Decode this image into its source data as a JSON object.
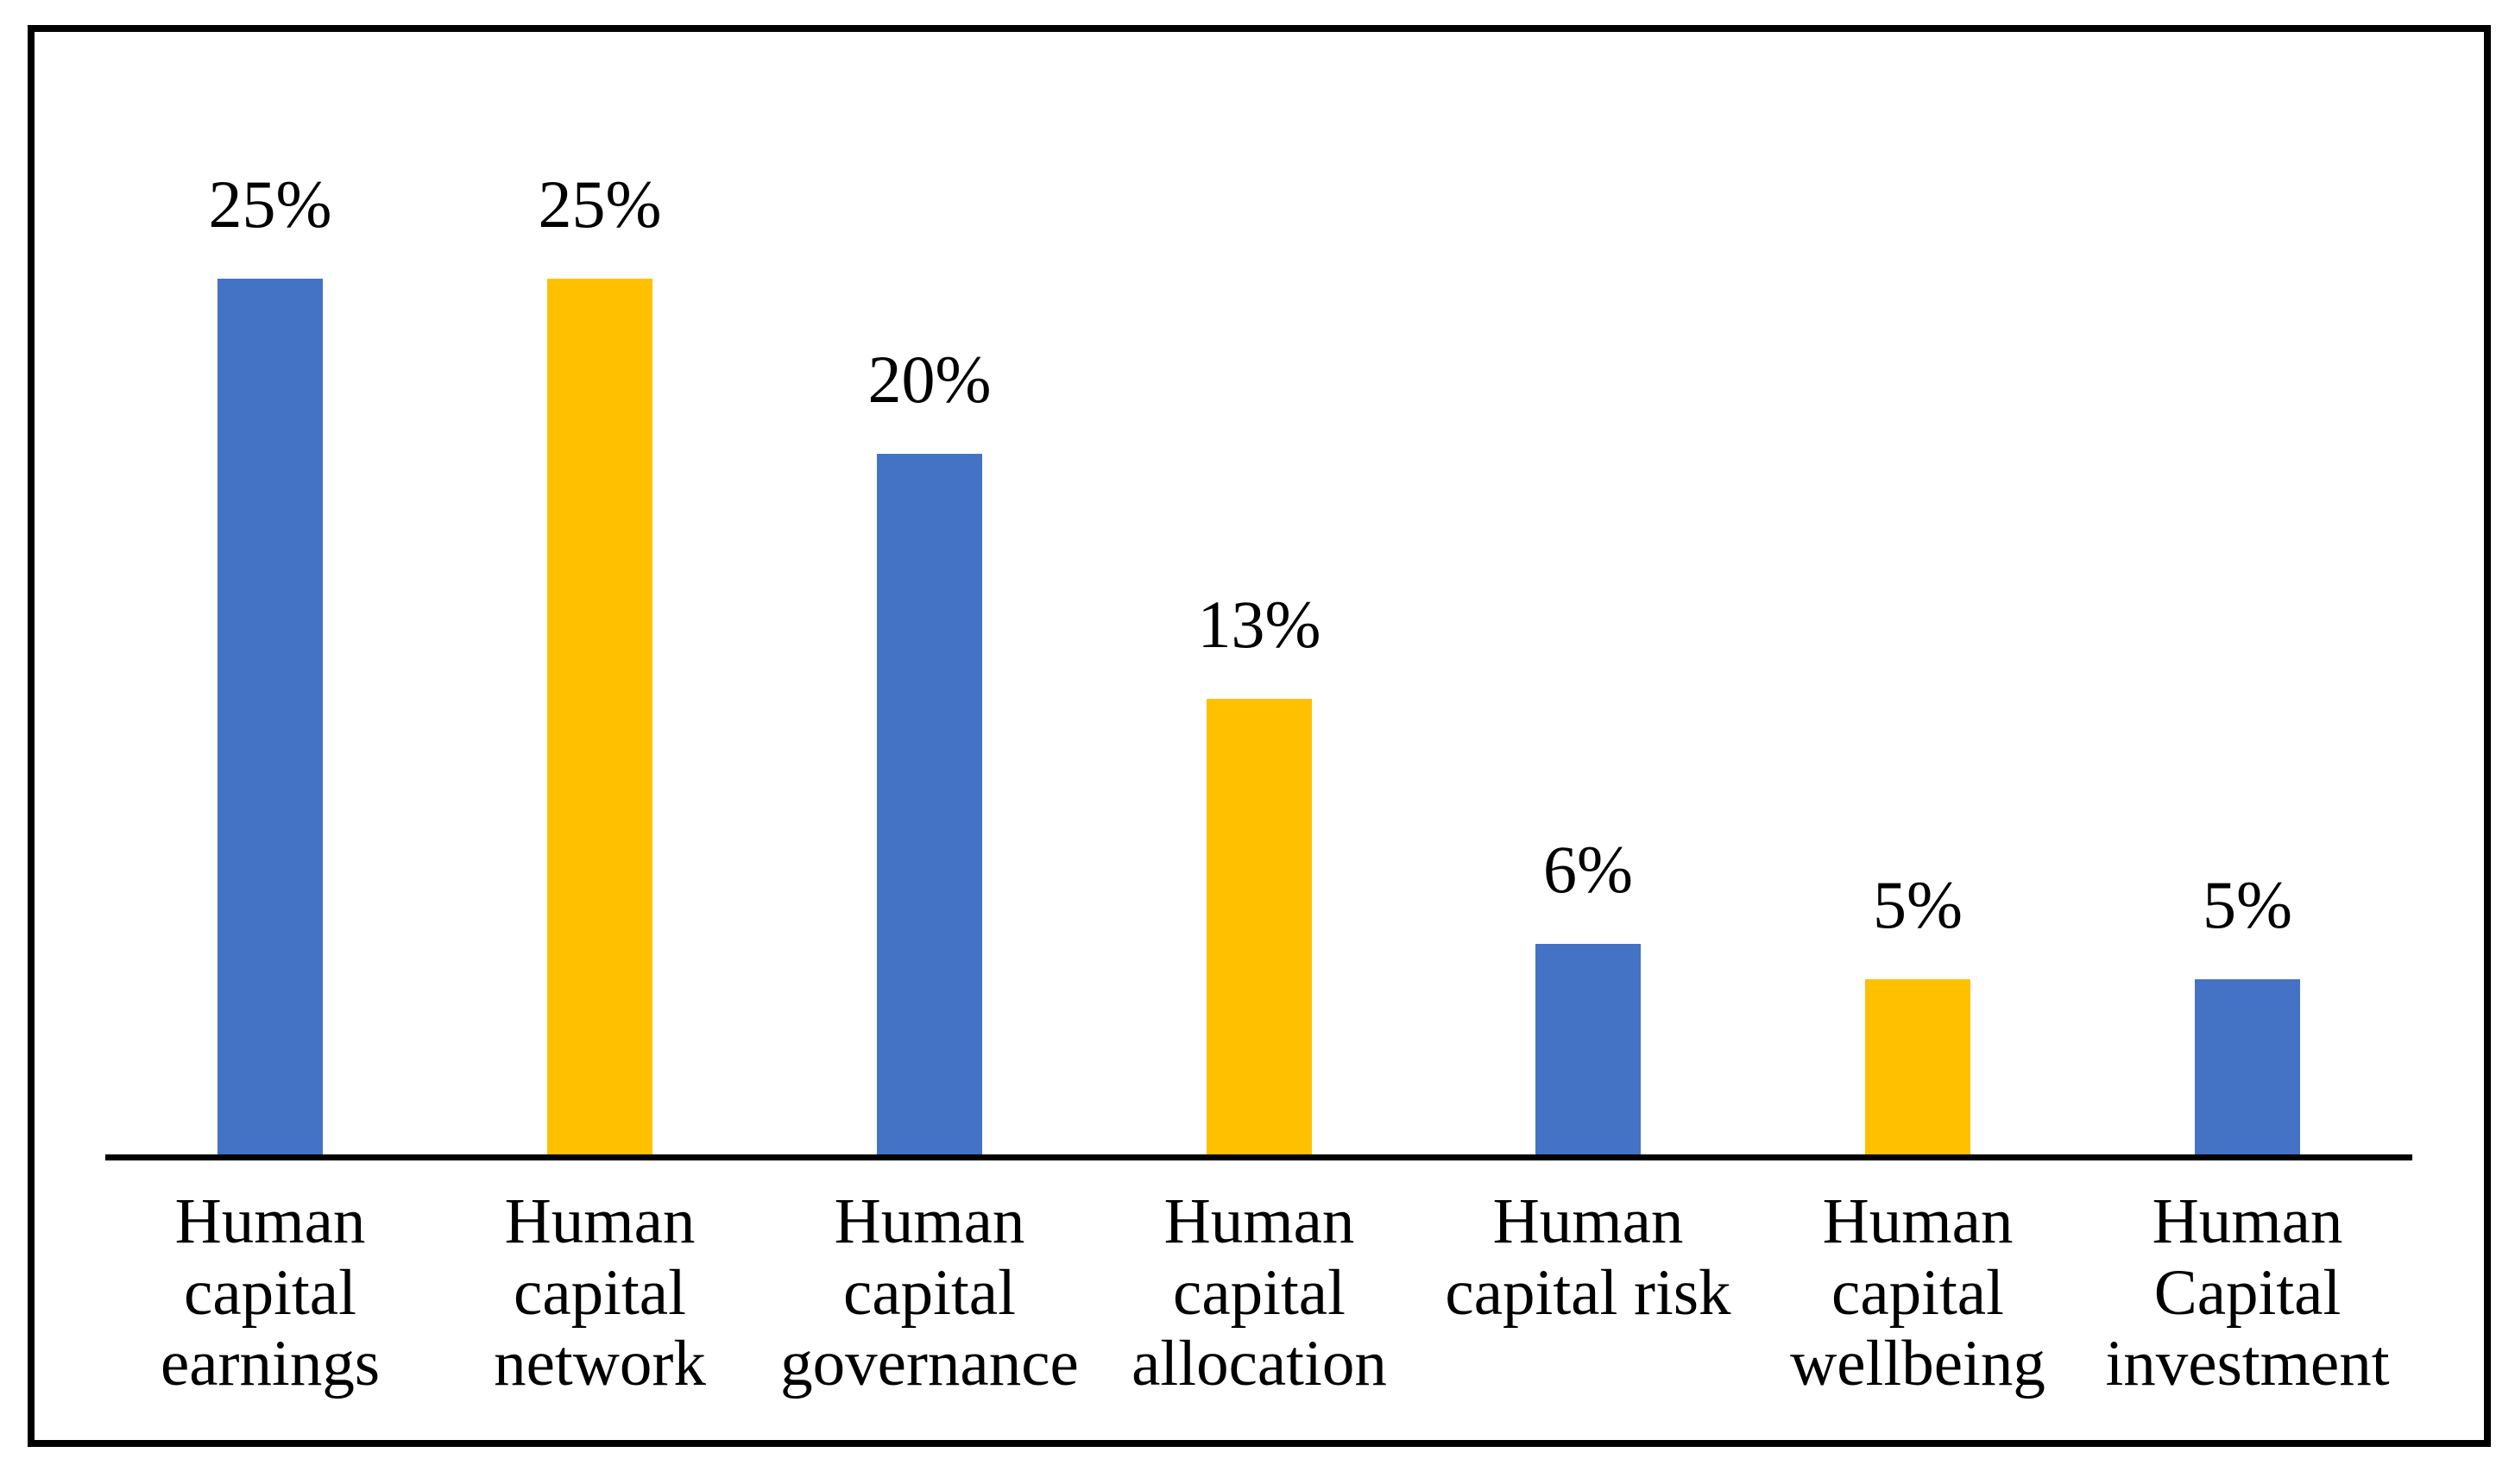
{
  "chart_data": {
    "type": "bar",
    "title": "",
    "xlabel": "",
    "ylabel": "",
    "unit": "%",
    "categories": [
      "Human capital earnings",
      "Human capital network",
      "Human capital governance",
      "Human capital allocation",
      "Human capital risk",
      "Human capital wellbeing",
      "Human Capital investment"
    ],
    "categories_lines": [
      [
        "Human",
        "capital",
        "earnings"
      ],
      [
        "Human",
        "capital",
        "network"
      ],
      [
        "Human",
        "capital",
        "governance"
      ],
      [
        "Human",
        "capital",
        "allocation"
      ],
      [
        "Human",
        "capital risk"
      ],
      [
        "Human",
        "capital",
        "wellbeing"
      ],
      [
        "Human",
        "Capital",
        "investment"
      ]
    ],
    "values": [
      25,
      25,
      20,
      13,
      6,
      5,
      5
    ],
    "data_labels": [
      "25%",
      "25%",
      "20%",
      "13%",
      "6%",
      "5%",
      "5%"
    ],
    "bar_colors": [
      "#4472C4",
      "#FFC000",
      "#4472C4",
      "#FFC000",
      "#4472C4",
      "#FFC000",
      "#4472C4"
    ],
    "ylim": [
      0,
      30
    ],
    "grid": false,
    "y_axis_visible": false,
    "legend": "none",
    "axis_color": "#000000",
    "frame_color": "#000000",
    "text_color": "#000000",
    "background_color": "#FFFFFF"
  }
}
